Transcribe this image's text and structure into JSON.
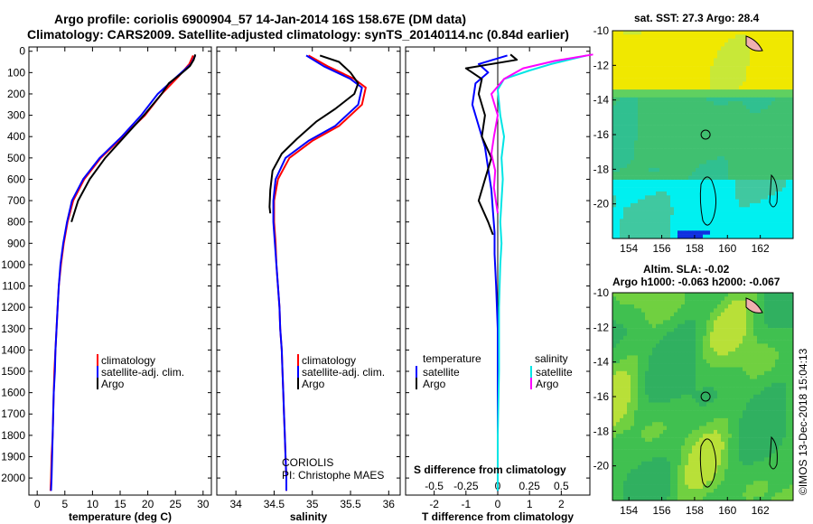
{
  "header": {
    "title_line1": "Argo profile: coriolis 6900904_57 14-Jan-2014 16S 158.67E (DM data)",
    "title_line2": "Climatology: CARS2009. Satellite-adjusted climatology: synTS_20140114.nc (0.84d earlier)"
  },
  "colors": {
    "climatology": "#ff0000",
    "satellite": "#0000ff",
    "argo": "#000000",
    "sat_salinity": "#00e5e5",
    "argo_salinity": "#ff00ff"
  },
  "depth_ticks": [
    "0",
    "100",
    "200",
    "300",
    "400",
    "500",
    "600",
    "700",
    "800",
    "900",
    "1000",
    "1100",
    "1200",
    "1300",
    "1400",
    "1500",
    "1600",
    "1700",
    "1800",
    "1900",
    "2000"
  ],
  "legend_main": [
    "climatology",
    "satellite-adj. clim.",
    "Argo"
  ],
  "legend_diff": {
    "temperature_title": "temperature",
    "salinity_title": "salinity",
    "satellite": "satellite",
    "argo": "Argo"
  },
  "credit": {
    "line1": "CORIOLIS",
    "line2": "PI: Christophe MAES"
  },
  "diff_annotation": "S difference from climatology",
  "maps": {
    "sst_title": "sat. SST: 27.3 Argo: 28.4",
    "sla_title1": "Altim. SLA: -0.02",
    "sla_title2": "Argo h1000: -0.063 h2000: -0.067",
    "lon_ticks": [
      "154",
      "156",
      "158",
      "160",
      "162"
    ],
    "lat_ticks": [
      "-10",
      "-12",
      "-14",
      "-16",
      "-18",
      "-20"
    ]
  },
  "watermark": "©IMOS 13-Dec-2018 15:04:13",
  "chart_data": [
    {
      "type": "line",
      "xlabel": "temperature (deg C)",
      "xticks": [
        0,
        5,
        10,
        15,
        20,
        25,
        30
      ],
      "xlim": [
        -1.5,
        31.5
      ],
      "ylim": [
        2080,
        -20
      ],
      "series": [
        {
          "name": "climatology",
          "points": [
            [
              28.2,
              20
            ],
            [
              27.5,
              60
            ],
            [
              25.5,
              120
            ],
            [
              22.5,
              200
            ],
            [
              19.5,
              300
            ],
            [
              15.5,
              400
            ],
            [
              11.5,
              500
            ],
            [
              8.5,
              600
            ],
            [
              6.5,
              700
            ],
            [
              5.5,
              800
            ],
            [
              4.8,
              900
            ],
            [
              4.3,
              1000
            ],
            [
              3.9,
              1100
            ],
            [
              3.7,
              1200
            ],
            [
              3.5,
              1300
            ],
            [
              3.3,
              1400
            ],
            [
              3.1,
              1500
            ],
            [
              3.0,
              1600
            ],
            [
              2.9,
              1700
            ],
            [
              2.8,
              1800
            ],
            [
              2.6,
              1900
            ],
            [
              2.5,
              2000
            ],
            [
              2.4,
              2060
            ]
          ]
        },
        {
          "name": "satellite-adj. clim.",
          "points": [
            [
              28.6,
              20
            ],
            [
              27.8,
              60
            ],
            [
              25.2,
              120
            ],
            [
              21.8,
              200
            ],
            [
              18.8,
              300
            ],
            [
              15.3,
              400
            ],
            [
              11.3,
              500
            ],
            [
              8.3,
              600
            ],
            [
              6.3,
              700
            ],
            [
              5.4,
              800
            ],
            [
              4.7,
              900
            ],
            [
              4.2,
              1000
            ],
            [
              3.9,
              1100
            ],
            [
              3.7,
              1200
            ],
            [
              3.5,
              1300
            ],
            [
              3.3,
              1400
            ],
            [
              3.2,
              1500
            ],
            [
              3.0,
              1600
            ],
            [
              2.9,
              1700
            ],
            [
              2.8,
              1800
            ],
            [
              2.7,
              1900
            ],
            [
              2.6,
              2000
            ],
            [
              2.5,
              2060
            ]
          ]
        },
        {
          "name": "Argo",
          "points": [
            [
              28.6,
              15
            ],
            [
              28.3,
              40
            ],
            [
              27.6,
              70
            ],
            [
              25.8,
              110
            ],
            [
              23.8,
              150
            ],
            [
              22.5,
              200
            ],
            [
              19.3,
              300
            ],
            [
              15.8,
              400
            ],
            [
              12.3,
              500
            ],
            [
              9.5,
              600
            ],
            [
              7.4,
              700
            ],
            [
              6.2,
              800
            ]
          ]
        }
      ]
    },
    {
      "type": "line",
      "xlabel": "salinity",
      "xticks": [
        34,
        34.5,
        35,
        35.5,
        36
      ],
      "xlim": [
        33.75,
        36.15
      ],
      "ylim": [
        2080,
        -20
      ],
      "series": [
        {
          "name": "climatology",
          "points": [
            [
              34.95,
              20
            ],
            [
              35.2,
              70
            ],
            [
              35.55,
              130
            ],
            [
              35.7,
              170
            ],
            [
              35.65,
              250
            ],
            [
              35.35,
              350
            ],
            [
              35.0,
              420
            ],
            [
              34.7,
              500
            ],
            [
              34.55,
              600
            ],
            [
              34.5,
              700
            ],
            [
              34.5,
              800
            ],
            [
              34.52,
              900
            ],
            [
              34.53,
              1000
            ],
            [
              34.55,
              1100
            ],
            [
              34.57,
              1200
            ],
            [
              34.58,
              1300
            ],
            [
              34.6,
              1400
            ],
            [
              34.61,
              1500
            ],
            [
              34.62,
              1600
            ],
            [
              34.63,
              1700
            ],
            [
              34.64,
              1800
            ],
            [
              34.65,
              1900
            ],
            [
              34.66,
              2000
            ],
            [
              34.66,
              2060
            ]
          ]
        },
        {
          "name": "satellite-adj. clim.",
          "points": [
            [
              34.92,
              20
            ],
            [
              35.15,
              70
            ],
            [
              35.5,
              130
            ],
            [
              35.65,
              170
            ],
            [
              35.6,
              250
            ],
            [
              35.3,
              350
            ],
            [
              34.95,
              420
            ],
            [
              34.65,
              500
            ],
            [
              34.52,
              600
            ],
            [
              34.49,
              700
            ],
            [
              34.49,
              800
            ],
            [
              34.51,
              900
            ],
            [
              34.53,
              1000
            ],
            [
              34.55,
              1100
            ],
            [
              34.57,
              1200
            ],
            [
              34.58,
              1300
            ],
            [
              34.6,
              1400
            ],
            [
              34.61,
              1500
            ],
            [
              34.62,
              1600
            ],
            [
              34.63,
              1700
            ],
            [
              34.64,
              1800
            ],
            [
              34.65,
              1900
            ],
            [
              34.66,
              2000
            ],
            [
              34.66,
              2060
            ]
          ]
        },
        {
          "name": "Argo",
          "points": [
            [
              35.1,
              20
            ],
            [
              35.35,
              50
            ],
            [
              35.5,
              100
            ],
            [
              35.6,
              150
            ],
            [
              35.55,
              200
            ],
            [
              35.3,
              270
            ],
            [
              35.05,
              330
            ],
            [
              34.8,
              410
            ],
            [
              34.6,
              480
            ],
            [
              34.48,
              560
            ],
            [
              34.45,
              650
            ],
            [
              34.44,
              730
            ],
            [
              34.45,
              760
            ]
          ]
        }
      ]
    },
    {
      "type": "line",
      "xlabel": "T difference from climatology",
      "xticks": [
        -2,
        -1,
        0,
        1,
        2
      ],
      "xlim": [
        -2.9,
        2.9
      ],
      "ylim": [
        2080,
        -20
      ],
      "s_ticks": [
        -0.5,
        -0.25,
        0,
        0.25,
        0.5
      ],
      "series": [
        {
          "name": "temperature satellite",
          "points": [
            [
              0.3,
              20
            ],
            [
              -0.6,
              60
            ],
            [
              -0.3,
              100
            ],
            [
              -0.7,
              150
            ],
            [
              -0.8,
              250
            ],
            [
              -0.6,
              350
            ],
            [
              -0.4,
              450
            ],
            [
              -0.3,
              550
            ],
            [
              -0.2,
              650
            ],
            [
              -0.15,
              750
            ],
            [
              -0.1,
              850
            ],
            [
              -0.1,
              950
            ],
            [
              -0.05,
              1100
            ],
            [
              0,
              1300
            ],
            [
              0,
              1500
            ],
            [
              0,
              1700
            ],
            [
              0,
              1900
            ],
            [
              0,
              2060
            ]
          ]
        },
        {
          "name": "temperature Argo",
          "points": [
            [
              0.4,
              15
            ],
            [
              0.6,
              40
            ],
            [
              -1.0,
              80
            ],
            [
              -0.5,
              130
            ],
            [
              -0.6,
              200
            ],
            [
              -0.4,
              300
            ],
            [
              -0.5,
              400
            ],
            [
              -0.2,
              500
            ],
            [
              -0.4,
              600
            ],
            [
              -0.6,
              700
            ],
            [
              -0.3,
              800
            ],
            [
              -0.15,
              860
            ]
          ]
        },
        {
          "name": "salinity satellite",
          "s_scale": true,
          "points": [
            [
              0.7,
              20
            ],
            [
              0.42,
              60
            ],
            [
              0.25,
              90
            ],
            [
              0.05,
              130
            ],
            [
              0.0,
              180
            ],
            [
              0.02,
              300
            ],
            [
              0.05,
              400
            ],
            [
              0.03,
              500
            ],
            [
              0.04,
              600
            ],
            [
              0.03,
              700
            ],
            [
              0.02,
              800
            ],
            [
              0.03,
              900
            ],
            [
              0.02,
              1000
            ],
            [
              0.01,
              1200
            ],
            [
              0.01,
              1500
            ],
            [
              0.0,
              1800
            ],
            [
              0.0,
              2060
            ]
          ]
        },
        {
          "name": "salinity Argo",
          "s_scale": true,
          "points": [
            [
              0.75,
              15
            ],
            [
              0.45,
              45
            ],
            [
              0.2,
              80
            ],
            [
              0.05,
              130
            ],
            [
              -0.05,
              200
            ],
            [
              0.0,
              300
            ],
            [
              -0.03,
              400
            ],
            [
              -0.05,
              480
            ],
            [
              -0.02,
              560
            ],
            [
              -0.03,
              640
            ],
            [
              -0.01,
              720
            ],
            [
              0.0,
              760
            ]
          ]
        }
      ]
    }
  ]
}
